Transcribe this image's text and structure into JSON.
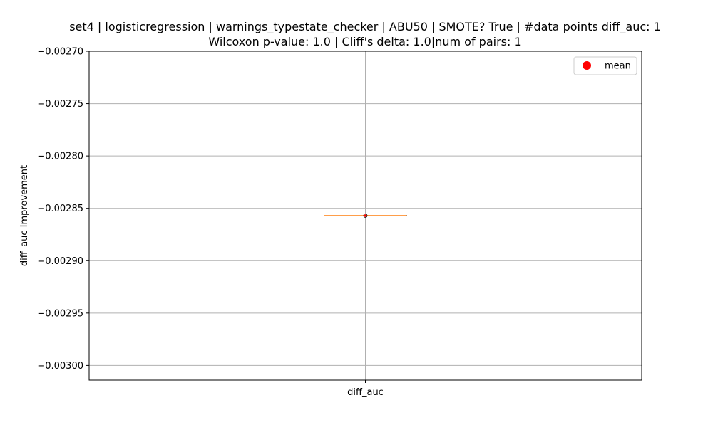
{
  "chart_data": {
    "type": "box",
    "title_line1": "set4 | logisticregression | warnings_typestate_checker | ABU50 | SMOTE? True | #data points diff_auc: 1",
    "title_line2": "Wilcoxon p-value: 1.0 | Cliff's delta: 1.0|num of pairs: 1",
    "xlabel": "",
    "ylabel": "diff_auc Improvement",
    "categories": [
      "diff_auc"
    ],
    "ylim": [
      -0.003014,
      -0.0027
    ],
    "yticks": [
      -0.0027,
      -0.00275,
      -0.0028,
      -0.00285,
      -0.0029,
      -0.00295,
      -0.003
    ],
    "ytick_labels": [
      "−0.00270",
      "−0.00275",
      "−0.00280",
      "−0.00285",
      "−0.00290",
      "−0.00295",
      "−0.00300"
    ],
    "grid": true,
    "legend": {
      "placement": "top-right",
      "entries": [
        {
          "label": "mean",
          "color": "#ff0000",
          "marker": "circle"
        }
      ]
    },
    "boxes": [
      {
        "category": "diff_auc",
        "min": -0.002857,
        "q1": -0.002857,
        "median": -0.002857,
        "q3": -0.002857,
        "max": -0.002857,
        "mean": -0.002857,
        "points": [
          -0.002857
        ]
      }
    ],
    "colors": {
      "median": "#ff7f0e",
      "mean": "#ff0000",
      "box": "#000000",
      "grid": "#b0b0b0"
    }
  }
}
